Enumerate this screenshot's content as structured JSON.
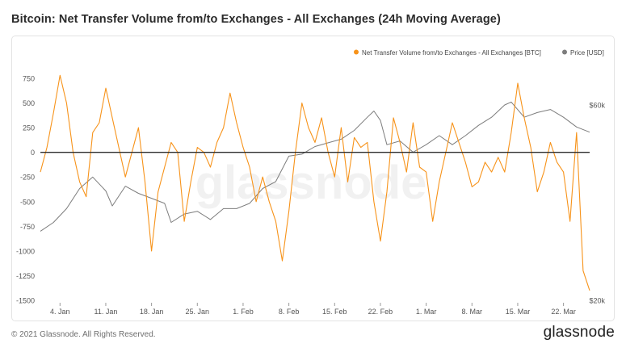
{
  "header": {
    "title": "Bitcoin: Net Transfer Volume from/to Exchanges - All Exchanges (24h Moving Average)"
  },
  "footer": {
    "copyright": "© 2021 Glassnode. All Rights Reserved.",
    "logo_text": "glassnode"
  },
  "watermark": "glassnode",
  "colors": {
    "net_transfer": "#f7931a",
    "price": "#7d7d7d",
    "zero_line": "#2b2b2b",
    "axis_text": "#555555"
  },
  "chart_data": {
    "type": "line",
    "title": "Bitcoin: Net Transfer Volume from/to Exchanges - All Exchanges (24h Moving Average)",
    "legend_position": "top-right",
    "grid": false,
    "x_ticks": [
      "4. Jan",
      "11. Jan",
      "18. Jan",
      "25. Jan",
      "1. Feb",
      "8. Feb",
      "15. Feb",
      "22. Feb",
      "1. Mar",
      "8. Mar",
      "15. Mar",
      "22. Mar"
    ],
    "y_left": {
      "unit": "BTC",
      "ticks": [
        "750",
        "500",
        "250",
        "0",
        "-250",
        "-500",
        "-750",
        "-1000",
        "-1250",
        "-1500"
      ],
      "range": [
        -1500,
        750
      ]
    },
    "y_right": {
      "unit": "USD",
      "scale": "log",
      "ticks": [
        "$60k",
        "$20k"
      ],
      "range": [
        20000,
        60000
      ]
    },
    "series": [
      {
        "name": "Net Transfer Volume from/to Exchanges - All Exchanges [BTC]",
        "axis": "left",
        "points": [
          [
            "2021-01-01",
            -200
          ],
          [
            "2021-01-02",
            50
          ],
          [
            "2021-01-03",
            400
          ],
          [
            "2021-01-04",
            780
          ],
          [
            "2021-01-05",
            500
          ],
          [
            "2021-01-06",
            0
          ],
          [
            "2021-01-07",
            -300
          ],
          [
            "2021-01-08",
            -450
          ],
          [
            "2021-01-09",
            200
          ],
          [
            "2021-01-10",
            300
          ],
          [
            "2021-01-11",
            650
          ],
          [
            "2021-01-12",
            350
          ],
          [
            "2021-01-13",
            50
          ],
          [
            "2021-01-14",
            -250
          ],
          [
            "2021-01-15",
            0
          ],
          [
            "2021-01-16",
            250
          ],
          [
            "2021-01-17",
            -300
          ],
          [
            "2021-01-18",
            -1000
          ],
          [
            "2021-01-19",
            -400
          ],
          [
            "2021-01-20",
            -150
          ],
          [
            "2021-01-21",
            100
          ],
          [
            "2021-01-22",
            0
          ],
          [
            "2021-01-23",
            -700
          ],
          [
            "2021-01-24",
            -300
          ],
          [
            "2021-01-25",
            50
          ],
          [
            "2021-01-26",
            0
          ],
          [
            "2021-01-27",
            -150
          ],
          [
            "2021-01-28",
            100
          ],
          [
            "2021-01-29",
            250
          ],
          [
            "2021-01-30",
            600
          ],
          [
            "2021-01-31",
            300
          ],
          [
            "2021-02-01",
            50
          ],
          [
            "2021-02-02",
            -150
          ],
          [
            "2021-02-03",
            -500
          ],
          [
            "2021-02-04",
            -250
          ],
          [
            "2021-02-05",
            -500
          ],
          [
            "2021-02-06",
            -700
          ],
          [
            "2021-02-07",
            -1100
          ],
          [
            "2021-02-08",
            -600
          ],
          [
            "2021-02-09",
            0
          ],
          [
            "2021-02-10",
            500
          ],
          [
            "2021-02-11",
            250
          ],
          [
            "2021-02-12",
            100
          ],
          [
            "2021-02-13",
            350
          ],
          [
            "2021-02-14",
            0
          ],
          [
            "2021-02-15",
            -250
          ],
          [
            "2021-02-16",
            250
          ],
          [
            "2021-02-17",
            -300
          ],
          [
            "2021-02-18",
            150
          ],
          [
            "2021-02-19",
            50
          ],
          [
            "2021-02-20",
            100
          ],
          [
            "2021-02-21",
            -500
          ],
          [
            "2021-02-22",
            -900
          ],
          [
            "2021-02-23",
            -400
          ],
          [
            "2021-02-24",
            350
          ],
          [
            "2021-02-25",
            100
          ],
          [
            "2021-02-26",
            -200
          ],
          [
            "2021-02-27",
            300
          ],
          [
            "2021-02-28",
            -150
          ],
          [
            "2021-03-01",
            -200
          ],
          [
            "2021-03-02",
            -700
          ],
          [
            "2021-03-03",
            -300
          ],
          [
            "2021-03-04",
            0
          ],
          [
            "2021-03-05",
            300
          ],
          [
            "2021-03-06",
            100
          ],
          [
            "2021-03-07",
            -100
          ],
          [
            "2021-03-08",
            -350
          ],
          [
            "2021-03-09",
            -300
          ],
          [
            "2021-03-10",
            -100
          ],
          [
            "2021-03-11",
            -200
          ],
          [
            "2021-03-12",
            -50
          ],
          [
            "2021-03-13",
            -200
          ],
          [
            "2021-03-14",
            200
          ],
          [
            "2021-03-15",
            700
          ],
          [
            "2021-03-16",
            350
          ],
          [
            "2021-03-17",
            50
          ],
          [
            "2021-03-18",
            -400
          ],
          [
            "2021-03-19",
            -200
          ],
          [
            "2021-03-20",
            100
          ],
          [
            "2021-03-21",
            -100
          ],
          [
            "2021-03-22",
            -200
          ],
          [
            "2021-03-23",
            -700
          ],
          [
            "2021-03-24",
            200
          ],
          [
            "2021-03-25",
            -1200
          ],
          [
            "2021-03-26",
            -1400
          ]
        ]
      },
      {
        "name": "Price [USD]",
        "axis": "right",
        "points": [
          [
            "2021-01-01",
            29500
          ],
          [
            "2021-01-03",
            31000
          ],
          [
            "2021-01-05",
            33500
          ],
          [
            "2021-01-07",
            37500
          ],
          [
            "2021-01-09",
            40000
          ],
          [
            "2021-01-11",
            37000
          ],
          [
            "2021-01-12",
            34000
          ],
          [
            "2021-01-14",
            38000
          ],
          [
            "2021-01-16",
            36500
          ],
          [
            "2021-01-18",
            35500
          ],
          [
            "2021-01-20",
            34500
          ],
          [
            "2021-01-21",
            31000
          ],
          [
            "2021-01-23",
            32500
          ],
          [
            "2021-01-25",
            33000
          ],
          [
            "2021-01-27",
            31500
          ],
          [
            "2021-01-29",
            33500
          ],
          [
            "2021-01-31",
            33500
          ],
          [
            "2021-02-02",
            34500
          ],
          [
            "2021-02-04",
            37500
          ],
          [
            "2021-02-06",
            39000
          ],
          [
            "2021-02-08",
            45000
          ],
          [
            "2021-02-10",
            45500
          ],
          [
            "2021-02-12",
            47500
          ],
          [
            "2021-02-14",
            48500
          ],
          [
            "2021-02-16",
            49500
          ],
          [
            "2021-02-18",
            52000
          ],
          [
            "2021-02-20",
            56000
          ],
          [
            "2021-02-21",
            58000
          ],
          [
            "2021-02-22",
            55000
          ],
          [
            "2021-02-23",
            48000
          ],
          [
            "2021-02-25",
            49000
          ],
          [
            "2021-02-27",
            46000
          ],
          [
            "2021-03-01",
            48000
          ],
          [
            "2021-03-03",
            50500
          ],
          [
            "2021-03-05",
            48000
          ],
          [
            "2021-03-07",
            50500
          ],
          [
            "2021-03-09",
            53500
          ],
          [
            "2021-03-11",
            56000
          ],
          [
            "2021-03-13",
            60000
          ],
          [
            "2021-03-14",
            61000
          ],
          [
            "2021-03-16",
            56000
          ],
          [
            "2021-03-18",
            57500
          ],
          [
            "2021-03-20",
            58500
          ],
          [
            "2021-03-22",
            56000
          ],
          [
            "2021-03-24",
            53000
          ],
          [
            "2021-03-26",
            51500
          ]
        ]
      }
    ]
  }
}
